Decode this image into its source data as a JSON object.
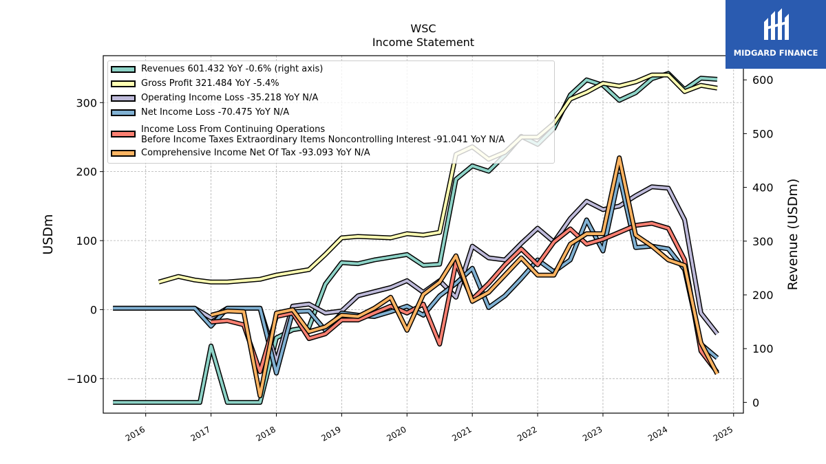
{
  "chart_data": {
    "type": "line",
    "title": "WSC",
    "subtitle": "Income Statement",
    "ylabel": "USDm",
    "ylabel_right": "Revenue (USDm)",
    "xlim": [
      2015.35,
      2025.15
    ],
    "ylim": [
      -150,
      368
    ],
    "ylim_right": [
      -20,
      645
    ],
    "x_ticks": [
      "2016",
      "2017",
      "2018",
      "2019",
      "2020",
      "2021",
      "2022",
      "2023",
      "2024",
      "2025"
    ],
    "y_ticks": [
      -100,
      0,
      100,
      200,
      300
    ],
    "y_tick_labels": [
      "−100",
      "0",
      "100",
      "200",
      "300"
    ],
    "y_right_ticks": [
      0,
      100,
      200,
      300,
      400,
      500,
      600
    ],
    "grid": true,
    "legend_position": "upper-left",
    "series": [
      {
        "name": "Revenues  601.432 YoY -0.6% (right axis)",
        "color": "#8dd3c7",
        "axis": "right",
        "x": [
          2015.5,
          2015.75,
          2016.0,
          2016.25,
          2016.5,
          2016.75,
          2016.83,
          2017.0,
          2017.25,
          2017.5,
          2017.75,
          2018.0,
          2018.25,
          2018.5,
          2018.75,
          2019.0,
          2019.25,
          2019.5,
          2019.75,
          2020.0,
          2020.25,
          2020.5,
          2020.75,
          2021.0,
          2021.25,
          2021.5,
          2021.75,
          2022.0,
          2022.25,
          2022.5,
          2022.75,
          2023.0,
          2023.25,
          2023.5,
          2023.75,
          2024.0,
          2024.25,
          2024.5,
          2024.75
        ],
        "y": [
          0,
          0,
          0,
          0,
          0,
          0,
          0,
          105,
          0,
          0,
          0,
          120,
          135,
          140,
          220,
          260,
          258,
          265,
          270,
          275,
          255,
          257,
          415,
          440,
          430,
          460,
          495,
          480,
          510,
          572,
          600,
          590,
          562,
          576,
          602,
          612,
          582,
          603,
          601
        ]
      },
      {
        "name": "Gross Profit  321.484 YoY -5.4%",
        "color": "#ffffb3",
        "axis": "left",
        "x": [
          2016.2,
          2016.5,
          2016.75,
          2017.0,
          2017.25,
          2017.5,
          2017.75,
          2018.0,
          2018.25,
          2018.5,
          2018.75,
          2019.0,
          2019.25,
          2019.5,
          2019.75,
          2020.0,
          2020.25,
          2020.5,
          2020.75,
          2021.0,
          2021.25,
          2021.5,
          2021.75,
          2022.0,
          2022.25,
          2022.5,
          2022.75,
          2023.0,
          2023.25,
          2023.5,
          2023.75,
          2024.0,
          2024.25,
          2024.5,
          2024.75
        ],
        "y": [
          40,
          48,
          43,
          40,
          40,
          42,
          44,
          50,
          54,
          58,
          80,
          104,
          106,
          105,
          104,
          110,
          108,
          112,
          225,
          236,
          218,
          228,
          250,
          250,
          270,
          305,
          315,
          328,
          324,
          330,
          340,
          340,
          316,
          325,
          321
        ]
      },
      {
        "name": "Operating Income Loss  -35.218 YoY N/A",
        "color": "#bebada",
        "axis": "left",
        "x": [
          2015.5,
          2015.75,
          2016.0,
          2016.25,
          2016.5,
          2016.75,
          2017.0,
          2017.25,
          2017.5,
          2017.75,
          2018.0,
          2018.25,
          2018.5,
          2018.75,
          2019.0,
          2019.25,
          2019.5,
          2019.75,
          2020.0,
          2020.25,
          2020.5,
          2020.75,
          2021.0,
          2021.25,
          2021.5,
          2021.75,
          2022.0,
          2022.25,
          2022.5,
          2022.75,
          2023.0,
          2023.25,
          2023.5,
          2023.75,
          2024.0,
          2024.25,
          2024.5,
          2024.75
        ],
        "y": [
          2,
          2,
          2,
          2,
          2,
          2,
          -12,
          2,
          2,
          2,
          -75,
          5,
          8,
          -5,
          -2,
          20,
          26,
          32,
          42,
          25,
          42,
          18,
          92,
          75,
          72,
          96,
          118,
          98,
          132,
          157,
          145,
          150,
          165,
          178,
          176,
          130,
          -5,
          -35
        ]
      },
      {
        "name": "Net Income Loss  -70.475 YoY N/A",
        "color": "#80b1d3",
        "axis": "left",
        "x": [
          2015.5,
          2015.75,
          2016.0,
          2016.25,
          2016.5,
          2016.75,
          2017.0,
          2017.25,
          2017.5,
          2017.75,
          2018.0,
          2018.25,
          2018.5,
          2018.75,
          2019.0,
          2019.25,
          2019.5,
          2019.75,
          2020.0,
          2020.25,
          2020.5,
          2020.75,
          2021.0,
          2021.25,
          2021.5,
          2021.75,
          2022.0,
          2022.25,
          2022.5,
          2022.75,
          2023.0,
          2023.25,
          2023.5,
          2023.75,
          2024.0,
          2024.25,
          2024.5,
          2024.75
        ],
        "y": [
          2,
          2,
          2,
          2,
          2,
          2,
          -24,
          2,
          2,
          2,
          -92,
          -3,
          -2,
          -30,
          -5,
          -8,
          -10,
          -3,
          5,
          -8,
          20,
          38,
          60,
          3,
          20,
          45,
          72,
          55,
          72,
          130,
          85,
          195,
          90,
          92,
          88,
          58,
          -50,
          -70
        ]
      },
      {
        "name": "Income Loss From Continuing Operations\nBefore Income Taxes Extraordinary Items Noncontrolling Interest  -91.041 YoY N/A",
        "color": "#fb8072",
        "axis": "left",
        "x": [
          2017.0,
          2017.25,
          2017.5,
          2017.75,
          2018.0,
          2018.25,
          2018.5,
          2018.75,
          2019.0,
          2019.25,
          2019.5,
          2019.75,
          2020.0,
          2020.25,
          2020.5,
          2020.75,
          2021.0,
          2021.25,
          2021.5,
          2021.75,
          2022.0,
          2022.25,
          2022.5,
          2022.75,
          2023.0,
          2023.25,
          2023.5,
          2023.75,
          2024.0,
          2024.25,
          2024.5,
          2024.75
        ],
        "y": [
          -18,
          -16,
          -22,
          -90,
          -10,
          -5,
          -42,
          -35,
          -15,
          -15,
          -5,
          5,
          -5,
          8,
          -50,
          68,
          15,
          38,
          65,
          88,
          65,
          98,
          117,
          95,
          102,
          112,
          122,
          125,
          118,
          72,
          -60,
          -91
        ]
      },
      {
        "name": "Comprehensive Income Net Of Tax  -93.093 YoY N/A",
        "color": "#fdb462",
        "axis": "left",
        "x": [
          2017.0,
          2017.25,
          2017.5,
          2017.75,
          2018.0,
          2018.25,
          2018.5,
          2018.75,
          2019.0,
          2019.25,
          2019.5,
          2019.75,
          2020.0,
          2020.25,
          2020.5,
          2020.75,
          2021.0,
          2021.25,
          2021.5,
          2021.75,
          2022.0,
          2022.25,
          2022.5,
          2022.75,
          2023.0,
          2023.25,
          2023.5,
          2023.75,
          2024.0,
          2024.25,
          2024.5,
          2024.75
        ],
        "y": [
          -8,
          -2,
          -3,
          -125,
          -5,
          0,
          -32,
          -25,
          -8,
          -10,
          2,
          18,
          -30,
          22,
          40,
          78,
          12,
          25,
          50,
          75,
          50,
          50,
          95,
          110,
          110,
          220,
          108,
          92,
          72,
          64,
          -48,
          -93
        ]
      }
    ]
  },
  "legend": {
    "items": [
      {
        "text": "Revenues  601.432 YoY -0.6% (right axis)"
      },
      {
        "text": "Gross Profit  321.484 YoY -5.4%"
      },
      {
        "text": "Operating Income Loss  -35.218 YoY N/A"
      },
      {
        "text": "Net Income Loss  -70.475 YoY N/A"
      },
      {
        "line1": "Income Loss From Continuing Operations",
        "line2": "Before Income Taxes Extraordinary Items Noncontrolling Interest  -91.041 YoY N/A"
      },
      {
        "text": "Comprehensive Income Net Of Tax  -93.093 YoY N/A"
      }
    ]
  },
  "logo": {
    "text": "MIDGARD FINANCE",
    "icon": "midgard-logo-mark",
    "background": "#2a5bb0"
  }
}
